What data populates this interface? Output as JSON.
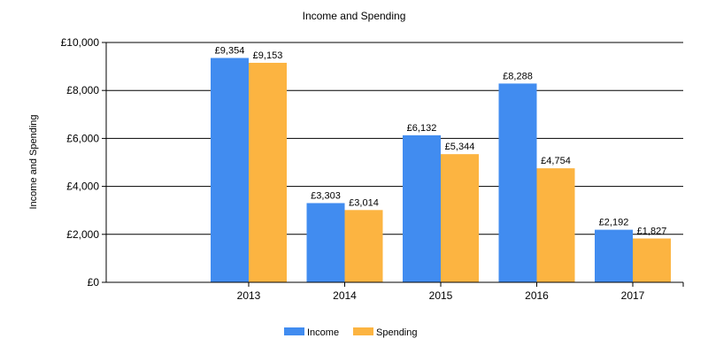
{
  "chart_data": {
    "type": "bar",
    "title": "Income and Spending",
    "xlabel": "",
    "ylabel": "Income and Spending",
    "categories": [
      "2013",
      "2014",
      "2015",
      "2016",
      "2017"
    ],
    "series": [
      {
        "name": "Income",
        "color": "#418CF0",
        "values": [
          9354,
          3303,
          6132,
          8288,
          2192
        ],
        "labels": [
          "£9,354",
          "£3,303",
          "£6,132",
          "£8,288",
          "£2,192"
        ]
      },
      {
        "name": "Spending",
        "color": "#FCB441",
        "values": [
          9153,
          3014,
          5344,
          4754,
          1827
        ],
        "labels": [
          "£9,153",
          "£3,014",
          "£5,344",
          "£4,754",
          "£1,827"
        ]
      }
    ],
    "ylim": [
      0,
      10000
    ],
    "yticks": [
      0,
      2000,
      4000,
      6000,
      8000,
      10000
    ],
    "ytick_labels": [
      "£0",
      "£2,000",
      "£4,000",
      "£6,000",
      "£8,000",
      "£10,000"
    ],
    "grid": true,
    "legend_position": "bottom-center"
  }
}
